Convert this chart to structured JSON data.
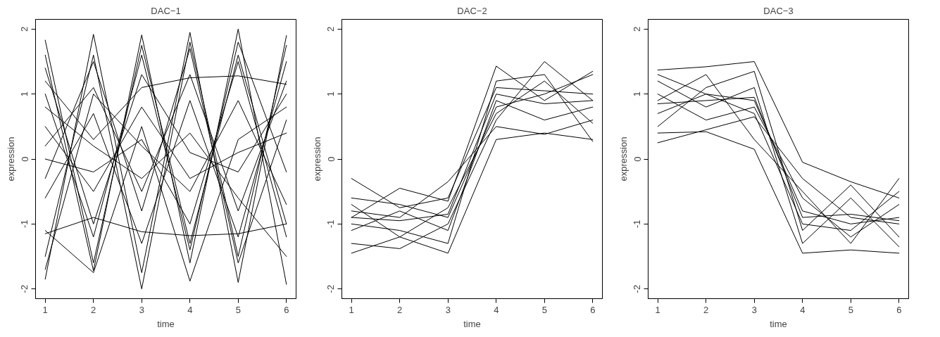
{
  "chart_data": [
    {
      "type": "line",
      "title": "DAC−1",
      "xlabel": "time",
      "ylabel": "expression",
      "x": [
        1,
        2,
        3,
        4,
        5,
        6
      ],
      "xlim": [
        0.8,
        6.2
      ],
      "ylim": [
        -2.15,
        2.15
      ],
      "xticks": [
        1,
        2,
        3,
        4,
        5,
        6
      ],
      "yticks": [
        -2,
        -1,
        0,
        1,
        2
      ],
      "line_style": "solid",
      "series": [
        {
          "color": "#000000",
          "values": [
            1.83,
            -1.6,
            1.75,
            -1.3,
            1.6,
            -1.0
          ]
        },
        {
          "color": "#000000",
          "values": [
            -1.85,
            1.92,
            -1.75,
            1.95,
            -1.9,
            1.9
          ]
        },
        {
          "color": "#000000",
          "values": [
            1.6,
            -1.72,
            1.91,
            -1.6,
            2.0,
            -1.93
          ]
        },
        {
          "color": "#000000",
          "values": [
            -1.5,
            1.6,
            -2.0,
            1.8,
            -1.5,
            1.75
          ]
        },
        {
          "color": "#000000",
          "values": [
            0.2,
            1.1,
            -0.5,
            1.3,
            -0.8,
            1.2
          ]
        },
        {
          "color": "#000000",
          "values": [
            -1.1,
            -1.75,
            0.5,
            -1.88,
            0.3,
            0.8
          ]
        },
        {
          "color": "#000000",
          "values": [
            1.2,
            0.3,
            1.1,
            1.25,
            1.28,
            1.15
          ]
        },
        {
          "color": "#000000",
          "values": [
            -1.15,
            -0.9,
            -1.12,
            -1.18,
            -1.15,
            -1.0
          ]
        },
        {
          "color": "#000000",
          "values": [
            0.5,
            -0.5,
            0.8,
            -0.3,
            0.1,
            0.4
          ]
        },
        {
          "color": "#000000",
          "values": [
            -0.6,
            0.7,
            -1.3,
            0.9,
            -1.2,
            1.5
          ]
        },
        {
          "color": "#000000",
          "values": [
            1.0,
            -1.2,
            1.6,
            -1.4,
            1.8,
            -0.2
          ]
        },
        {
          "color": "#000000",
          "values": [
            -0.3,
            1.5,
            -0.8,
            1.7,
            -1.6,
            0.6
          ]
        },
        {
          "color": "#000000",
          "values": [
            0.8,
            0.2,
            -0.3,
            0.4,
            -0.6,
            -1.5
          ]
        },
        {
          "color": "#000000",
          "values": [
            -1.7,
            1.0,
            0.2,
            -0.5,
            0.9,
            -0.7
          ]
        },
        {
          "color": "#000000",
          "values": [
            1.4,
            -1.0,
            1.3,
            0.1,
            -0.2,
            1.0
          ]
        },
        {
          "color": "#000000",
          "values": [
            0.0,
            -0.2,
            0.3,
            -1.0,
            1.5,
            -1.2
          ]
        }
      ]
    },
    {
      "type": "line",
      "title": "DAC−2",
      "xlabel": "time",
      "ylabel": "expression",
      "x": [
        1,
        2,
        3,
        4,
        5,
        6
      ],
      "xlim": [
        0.8,
        6.2
      ],
      "ylim": [
        -2.15,
        2.15
      ],
      "xticks": [
        1,
        2,
        3,
        4,
        5,
        6
      ],
      "yticks": [
        -2,
        -1,
        0,
        1,
        2
      ],
      "line_style": "solid",
      "series": [
        {
          "color": "#000000",
          "values": [
            -0.3,
            -0.75,
            -0.6,
            1.1,
            1.05,
            1.0
          ]
        },
        {
          "color": "#000000",
          "values": [
            -1.45,
            -1.2,
            -1.45,
            0.3,
            0.4,
            0.3
          ]
        },
        {
          "color": "#000000",
          "values": [
            -0.9,
            -0.45,
            -0.65,
            1.43,
            0.9,
            1.35
          ]
        },
        {
          "color": "#000000",
          "values": [
            -1.3,
            -1.38,
            -1.0,
            0.6,
            1.5,
            0.9
          ]
        },
        {
          "color": "#000000",
          "values": [
            -0.8,
            -0.9,
            -0.35,
            0.5,
            0.38,
            0.6
          ]
        },
        {
          "color": "#000000",
          "values": [
            -1.0,
            -1.1,
            -1.3,
            1.2,
            1.3,
            0.27
          ]
        },
        {
          "color": "#000000",
          "values": [
            -0.6,
            -0.7,
            -0.9,
            0.8,
            1.0,
            1.3
          ]
        },
        {
          "color": "#000000",
          "values": [
            -1.1,
            -0.8,
            -1.1,
            0.9,
            0.6,
            0.8
          ]
        },
        {
          "color": "#000000",
          "values": [
            -0.9,
            -0.95,
            -0.85,
            1.0,
            0.85,
            0.9
          ]
        },
        {
          "color": "#000000",
          "values": [
            -0.7,
            -1.2,
            -0.75,
            0.7,
            1.2,
            0.55
          ]
        }
      ]
    },
    {
      "type": "line",
      "title": "DAC−3",
      "xlabel": "time",
      "ylabel": "expression",
      "x": [
        1,
        2,
        3,
        4,
        5,
        6
      ],
      "xlim": [
        0.8,
        6.2
      ],
      "ylim": [
        -2.15,
        2.15
      ],
      "xticks": [
        1,
        2,
        3,
        4,
        5,
        6
      ],
      "yticks": [
        -2,
        -1,
        0,
        1,
        2
      ],
      "line_style": "solid",
      "series": [
        {
          "color": "#000000",
          "values": [
            0.25,
            0.45,
            0.65,
            -0.3,
            -0.9,
            -1.0
          ]
        },
        {
          "color": "#000000",
          "values": [
            1.37,
            1.42,
            1.5,
            -0.05,
            -0.35,
            -0.6
          ]
        },
        {
          "color": "#000000",
          "values": [
            0.4,
            0.42,
            0.15,
            -1.45,
            -1.4,
            -1.45
          ]
        },
        {
          "color": "#000000",
          "values": [
            0.9,
            1.3,
            0.3,
            -0.5,
            -1.3,
            -0.3
          ]
        },
        {
          "color": "#000000",
          "values": [
            1.2,
            0.8,
            1.1,
            -1.3,
            -0.6,
            -1.35
          ]
        },
        {
          "color": "#000000",
          "values": [
            0.7,
            1.0,
            0.9,
            -0.8,
            -1.0,
            -0.9
          ]
        },
        {
          "color": "#000000",
          "values": [
            0.5,
            1.1,
            1.35,
            -1.1,
            -0.4,
            -1.2
          ]
        },
        {
          "color": "#000000",
          "values": [
            1.0,
            0.6,
            0.8,
            -0.6,
            -1.2,
            -0.7
          ]
        },
        {
          "color": "#000000",
          "values": [
            0.85,
            0.9,
            0.95,
            -0.9,
            -0.85,
            -0.95
          ]
        },
        {
          "color": "#000000",
          "values": [
            1.3,
            1.0,
            0.7,
            -1.0,
            -1.1,
            -0.5
          ]
        }
      ]
    }
  ]
}
